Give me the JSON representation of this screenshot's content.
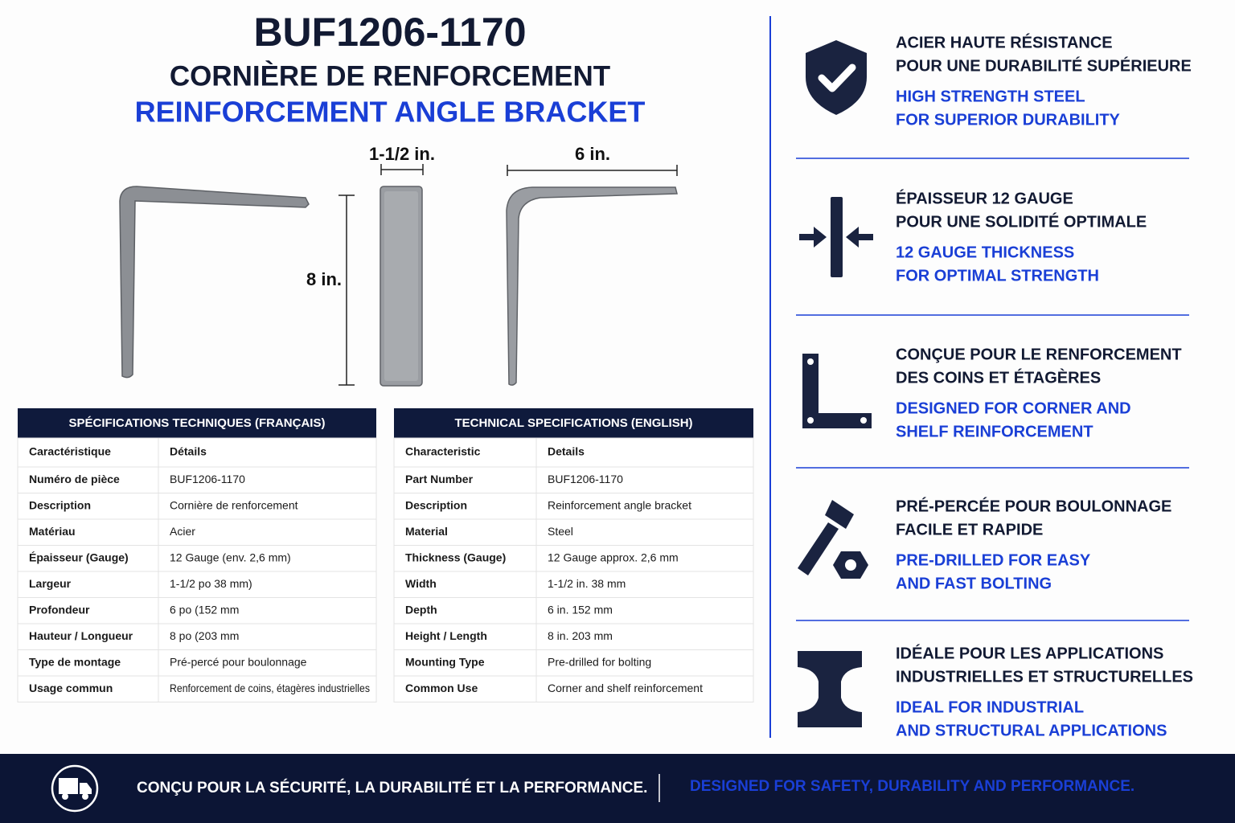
{
  "header": {
    "part_number": "BUF1206-1170",
    "title_fr": "CORNIÈRE DE RENFORCEMENT",
    "title_en": "REINFORCEMENT ANGLE BRACKET"
  },
  "dimensions": {
    "width": "1-1/2 in.",
    "depth": "6 in.",
    "height": "8 in."
  },
  "tables": [
    {
      "title": "SPÉCIFICATIONS TECHNIQUES (FRANÇAIS)",
      "headers": [
        "Caractéristique",
        "Détails"
      ],
      "rows": [
        [
          "Numéro de pièce",
          "BUF1206-1170"
        ],
        [
          "Description",
          "Cornière de renforcement"
        ],
        [
          "Matériau",
          "Acier"
        ],
        [
          "Épaisseur (Gauge)",
          "12 Gauge (env. 2,6 mm)"
        ],
        [
          "Largeur",
          "1-1/2 po 38 mm)"
        ],
        [
          "Profondeur",
          "6 po (152 mm"
        ],
        [
          "Hauteur / Longueur",
          "8 po (203 mm"
        ],
        [
          "Type de montage",
          "Pré-percé pour boulonnage"
        ],
        [
          "Usage commun",
          "Renforcement de coins, étagères industrielles"
        ]
      ]
    },
    {
      "title": "TECHNICAL SPECIFICATIONS (ENGLISH)",
      "headers": [
        "Characteristic",
        "Details"
      ],
      "rows": [
        [
          "Part Number",
          "BUF1206-1170"
        ],
        [
          "Description",
          "Reinforcement angle bracket"
        ],
        [
          "Material",
          "Steel"
        ],
        [
          "Thickness (Gauge)",
          "12 Gauge approx. 2,6 mm"
        ],
        [
          "Width",
          "1-1/2 in. 38 mm"
        ],
        [
          "Depth",
          "6 in. 152 mm"
        ],
        [
          "Height / Length",
          "8 in. 203 mm"
        ],
        [
          "Mounting Type",
          "Pre-drilled for bolting"
        ],
        [
          "Common Use",
          "Corner and shelf reinforcement"
        ]
      ]
    }
  ],
  "features": [
    {
      "fr": [
        "ACIER HAUTE RÉSISTANCE",
        "POUR UNE DURABILITÉ SUPÉRIEURE"
      ],
      "en": [
        "HIGH STRENGTH STEEL",
        "FOR SUPERIOR DURABILITY"
      ]
    },
    {
      "fr": [
        "ÉPAISSEUR 12 GAUGE",
        "POUR UNE SOLIDITÉ OPTIMALE"
      ],
      "en": [
        "12 GAUGE THICKNESS",
        "FOR OPTIMAL STRENGTH"
      ]
    },
    {
      "fr": [
        "CONÇUE POUR LE RENFORCEMENT",
        "DES COINS ET ÉTAGÈRES"
      ],
      "en": [
        "DESIGNED FOR CORNER AND",
        "SHELF REINFORCEMENT"
      ]
    },
    {
      "fr": [
        "PRÉ-PERCÉE POUR BOULONNAGE",
        "FACILE ET RAPIDE"
      ],
      "en": [
        "PRE-DRILLED FOR EASY",
        "AND FAST BOLTING"
      ]
    },
    {
      "fr": [
        "IDÉALE POUR LES APPLICATIONS",
        "INDUSTRIELLES ET STRUCTURELLES"
      ],
      "en": [
        "IDEAL FOR INDUSTRIAL",
        "AND STRUCTURAL APPLICATIONS"
      ]
    }
  ],
  "footer": {
    "fr": "CONÇU POUR LA SÉCURITÉ, LA DURABILITÉ ET LA PERFORMANCE.",
    "en": "DESIGNED FOR SAFETY, DURABILITY AND PERFORMANCE."
  }
}
